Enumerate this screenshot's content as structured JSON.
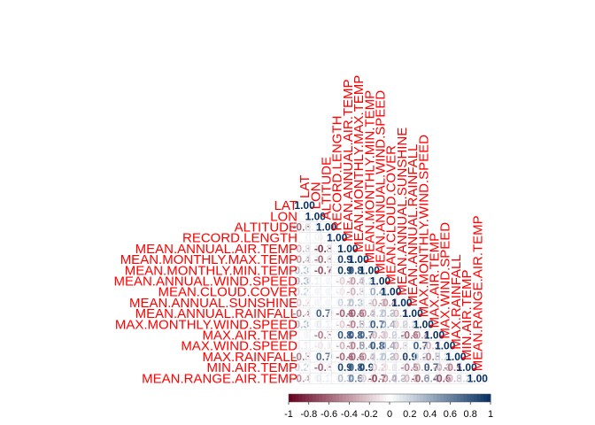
{
  "chart_data": {
    "type": "heatmap",
    "variables": [
      "LAT",
      "LON",
      "ALTITUDE",
      "RECORD.LENGTH",
      "MEAN.ANNUAL.AIR.TEMP",
      "MEAN.MONTHLY.MAX.TEMP",
      "MEAN.MONTHLY.MIN.TEMP",
      "MEAN.ANNUAL.WIND.SPEED",
      "MEAN.CLOUD.COVER",
      "MEAN.ANNUAL.SUNSHINE",
      "MEAN.ANNUAL.RAINFALL",
      "MAX.MONTHLY.WIND.SPEED",
      "MAX.AIR.TEMP",
      "MAX.WIND.SPEED",
      "MAX.RAINFALL",
      "MIN.AIR.TEMP",
      "MEAN.RANGE.AIR.TEMP"
    ],
    "matrix_lower": [
      [
        1.0
      ],
      [
        0.05,
        1.0
      ],
      [
        -0.6,
        0.1,
        1.0
      ],
      [
        0.0,
        0.05,
        -0.05,
        1.0
      ],
      [
        -0.3,
        0.1,
        -0.8,
        0.1,
        1.0
      ],
      [
        -0.4,
        0.1,
        -0.6,
        0.1,
        0.93,
        1.0
      ],
      [
        0.3,
        0.05,
        -0.7,
        0.1,
        0.96,
        0.86,
        1.0
      ],
      [
        0.33,
        0.1,
        0.05,
        0.05,
        -0.2,
        -0.4,
        0.2,
        1.0
      ],
      [
        0.2,
        0.05,
        0.05,
        0.05,
        -0.1,
        -0.3,
        0.1,
        0.4,
        1.0
      ],
      [
        -0.2,
        0.05,
        0.05,
        0.05,
        0.2,
        0.3,
        0.1,
        -0.3,
        -0.4,
        1.0
      ],
      [
        -0.49,
        0.05,
        0.75,
        -0.05,
        -0.62,
        -0.62,
        -0.42,
        0.2,
        0.3,
        -0.3,
        1.0
      ],
      [
        0.33,
        0.05,
        0.1,
        0.05,
        -0.2,
        -0.5,
        0.2,
        0.78,
        0.4,
        -0.2,
        0.2,
        1.0
      ],
      [
        0.05,
        0.05,
        -0.5,
        0.05,
        0.8,
        0.8,
        0.7,
        -0.3,
        -0.2,
        0.2,
        -0.6,
        -0.4,
        1.0
      ],
      [
        0.1,
        0.05,
        -0.1,
        0.05,
        -0.3,
        -0.5,
        0.4,
        0.8,
        0.4,
        -0.3,
        0.1,
        0.77,
        -0.3,
        1.0
      ],
      [
        -0.5,
        0.05,
        0.7,
        -0.05,
        -0.6,
        -0.6,
        -0.4,
        0.2,
        0.3,
        -0.3,
        0.9,
        0.2,
        -0.5,
        0.2,
        1.0
      ],
      [
        0.2,
        0.05,
        -0.6,
        0.05,
        0.9,
        0.8,
        0.91,
        -0.2,
        -0.1,
        0.1,
        -0.5,
        -0.3,
        0.78,
        -0.3,
        -0.5,
        1.0
      ],
      [
        -0.44,
        0.05,
        0.1,
        0.05,
        0.3,
        0.6,
        -0.2,
        -0.73,
        -0.4,
        0.3,
        -0.3,
        -0.6,
        0.4,
        -0.69,
        -0.3,
        0.2,
        1.0
      ]
    ],
    "colorbar": {
      "range": [
        -1,
        1
      ],
      "ticks": [
        "-1",
        "-0.8",
        "-0.6",
        "-0.4",
        "-0.2",
        "0",
        "0.2",
        "0.4",
        "0.6",
        "0.8",
        "1"
      ],
      "colors": {
        "negative": "#67001f",
        "zero": "#ffffff",
        "positive": "#053061"
      }
    },
    "title": "",
    "xlabel": "",
    "ylabel": "",
    "label_color": "#ff0000",
    "number_format": "2 decimals"
  }
}
